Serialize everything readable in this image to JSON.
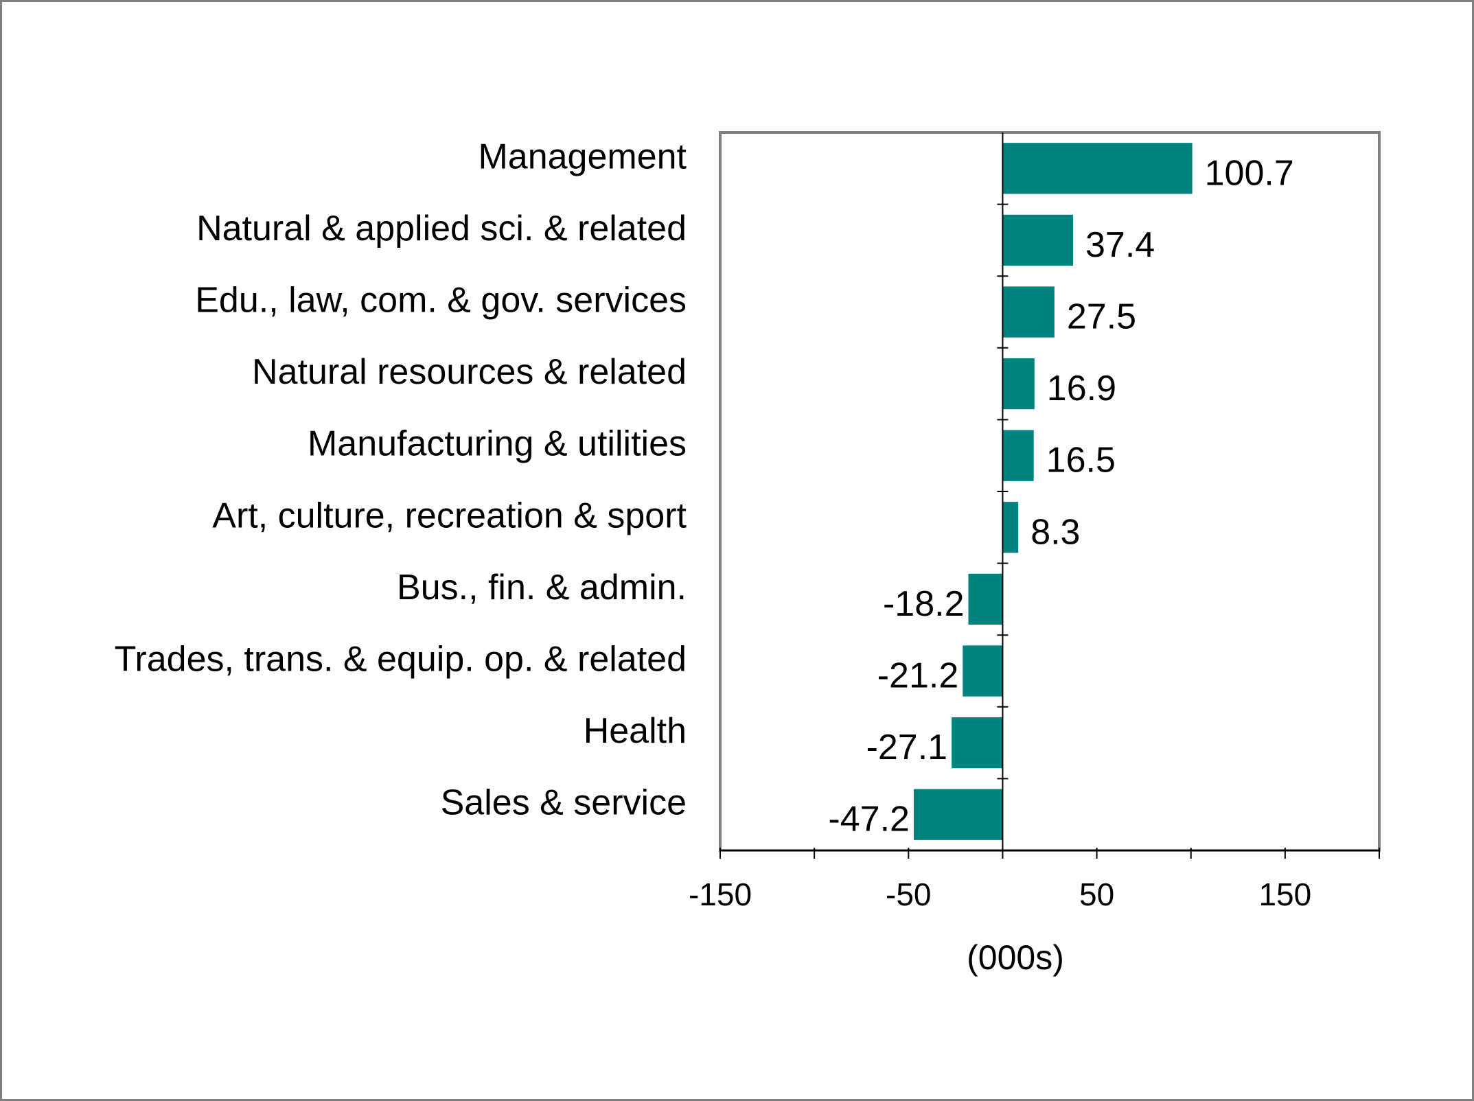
{
  "chart_data": {
    "type": "bar",
    "orientation": "horizontal",
    "categories": [
      "Management",
      "Natural & applied sci. & related",
      "Edu., law, com. & gov. services",
      "Natural resources & related",
      "Manufacturing & utilities",
      "Art, culture, recreation & sport",
      "Bus., fin. & admin.",
      "Trades, trans. & equip. op. & related",
      "Health",
      "Sales & service"
    ],
    "values": [
      100.7,
      37.4,
      27.5,
      16.9,
      16.5,
      8.3,
      -18.2,
      -21.2,
      -27.1,
      -47.2
    ],
    "data_labels": [
      "100.7",
      "37.4",
      "27.5",
      "16.9",
      "16.5",
      "8.3",
      "-18.2",
      "-21.2",
      "-27.1",
      "-47.2"
    ],
    "xlabel": "(000s)",
    "xlim": [
      -150,
      200
    ],
    "xticks": [
      -150,
      -50,
      50,
      150
    ],
    "xtick_labels": [
      "-150",
      "-50",
      "50",
      "150"
    ],
    "grid": false,
    "legend": "none",
    "colors": {
      "bar": "#00827f",
      "frame": "#808080",
      "axis": "#000000",
      "page_border": "#808080"
    }
  }
}
